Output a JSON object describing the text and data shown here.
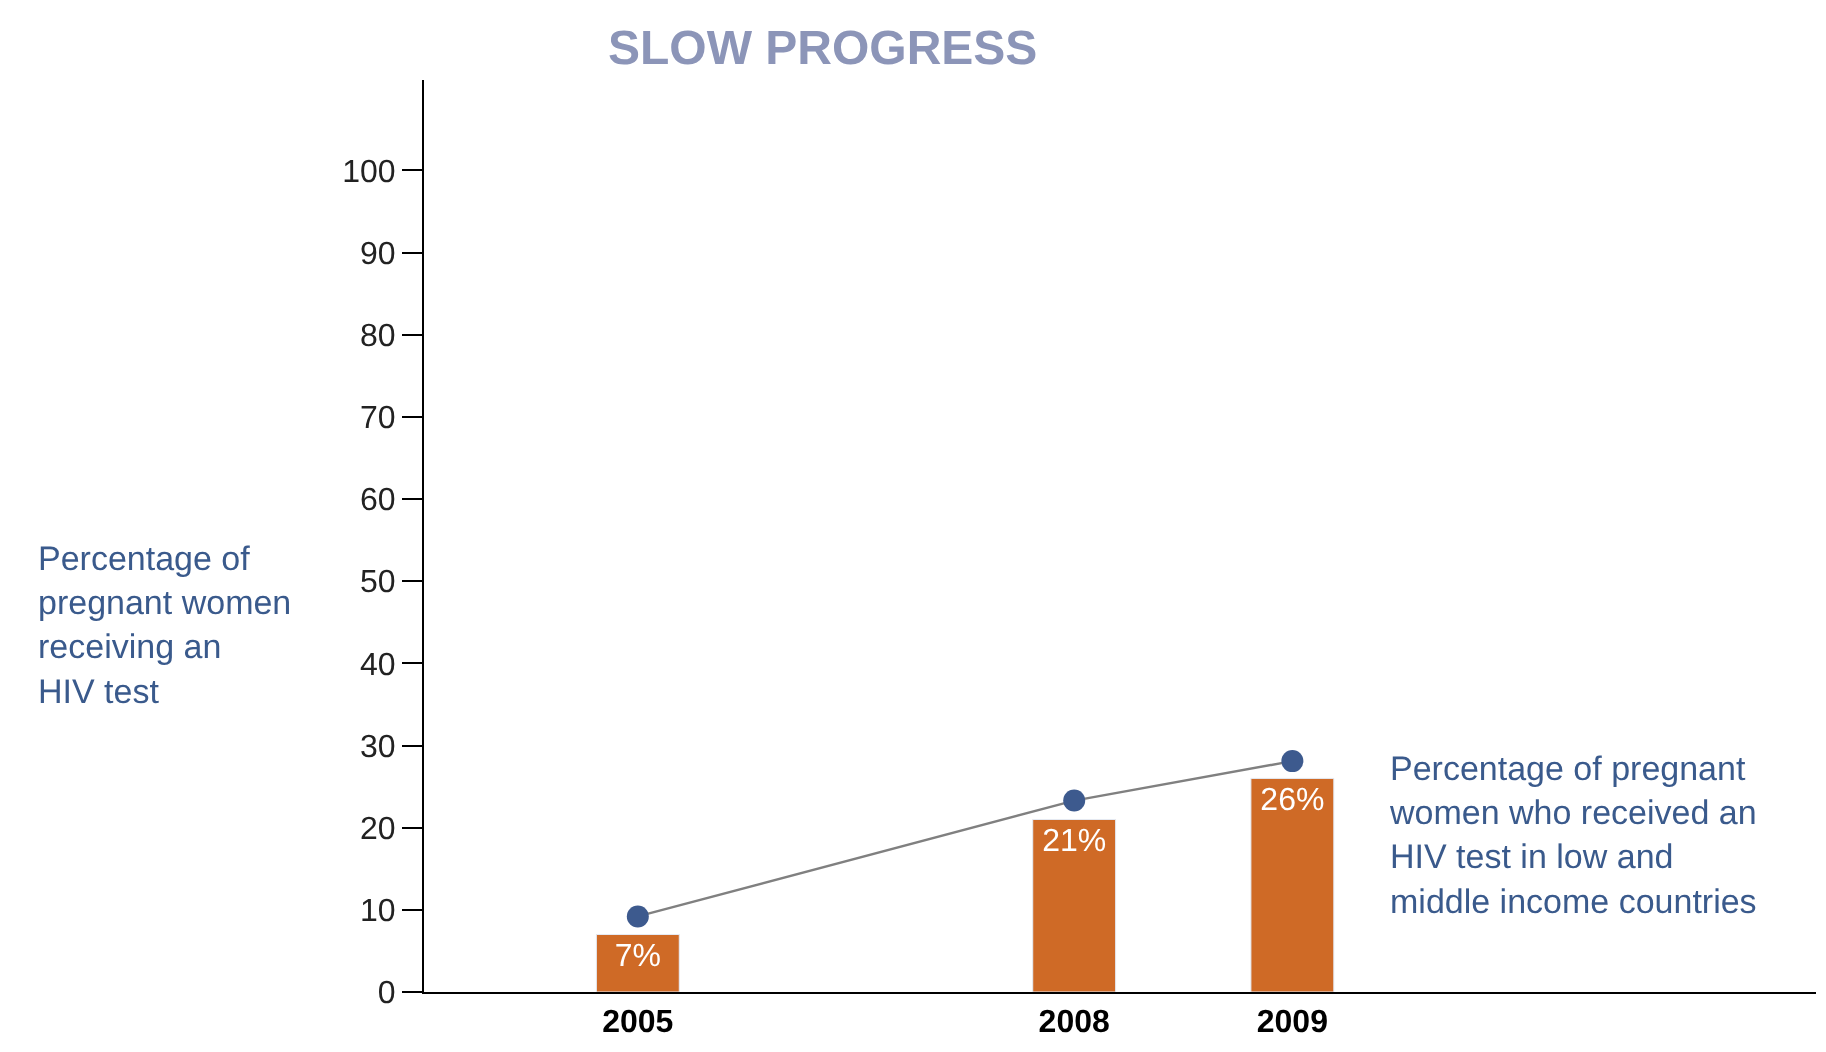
{
  "chart_data": {
    "type": "bar",
    "title": "SLOW PROGRESS",
    "ylabel": "Percentage of pregnant women receiving an HIV test",
    "categories": [
      "2005",
      null,
      "2008",
      "2009"
    ],
    "series": [
      {
        "color": "#cf6a26",
        "values": [
          7,
          null,
          21,
          26
        ],
        "value_labels": [
          "7%",
          null,
          "21%",
          "26%"
        ]
      },
      {
        "type": "line",
        "color": "#3d5a8e",
        "values": [
          9.2,
          null,
          23.3,
          28.1
        ],
        "marker": "circle",
        "line_style": "solid"
      }
    ],
    "annotations": [
      "Percentage of pregnant women who received an HIV test in low and middle income countries"
    ],
    "ylim": [
      0,
      111
    ],
    "yticks": [
      0,
      10,
      20,
      30,
      40,
      50,
      60,
      70,
      80,
      90,
      100
    ],
    "legend": false
  }
}
